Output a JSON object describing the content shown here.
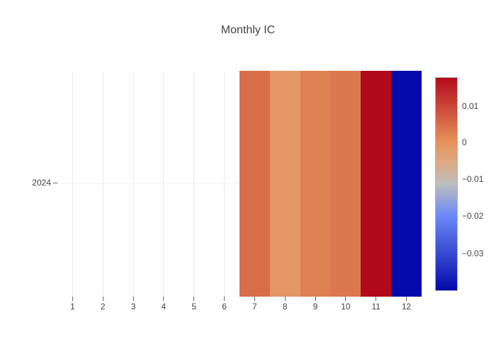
{
  "title": "Monthly IC",
  "chart_data": {
    "type": "heatmap",
    "title": "Monthly IC",
    "x_categories": [
      "1",
      "2",
      "3",
      "4",
      "5",
      "6",
      "7",
      "8",
      "9",
      "10",
      "11",
      "12"
    ],
    "y_categories": [
      "2024"
    ],
    "values_estimated_from_colorbar": true,
    "series": [
      {
        "name": "2024",
        "values": [
          null,
          null,
          null,
          null,
          null,
          null,
          0.005,
          -0.001,
          0.0025,
          0.0035,
          0.0178,
          -0.0398
        ]
      }
    ],
    "cell_colors_2024": [
      "",
      "",
      "",
      "",
      "",
      "",
      "#d96f4a",
      "#e49764",
      "#e08153",
      "#dc784f",
      "#b20a1c",
      "#050aac"
    ],
    "colorscale": {
      "name": "RdBu",
      "stops": [
        {
          "frac": 0.0,
          "color": "rgb(5,10,172)"
        },
        {
          "frac": 0.35,
          "color": "rgb(106,137,247)"
        },
        {
          "frac": 0.5,
          "color": "rgb(190,190,190)"
        },
        {
          "frac": 0.6,
          "color": "rgb(220,170,132)"
        },
        {
          "frac": 0.7,
          "color": "rgb(230,145,90)"
        },
        {
          "frac": 1.0,
          "color": "rgb(178,10,28)"
        }
      ]
    },
    "colorbar": {
      "tick_labels": [
        "0.01",
        "0",
        "−0.01",
        "−0.02",
        "−0.03"
      ],
      "value_at_top": 0.0178,
      "value_at_bottom": -0.0398
    },
    "grid": true,
    "legend_position": "none",
    "note": "months 1-6 have no data (blank cells over white background)"
  },
  "colors": {
    "background": "#ffffff",
    "text": "#444444",
    "gridline_vertical": "#ebebeb",
    "gridline_horizontal": "#f2f2f2",
    "tick_mark": "#666666",
    "colorbar_border": "#b0b0b0"
  }
}
